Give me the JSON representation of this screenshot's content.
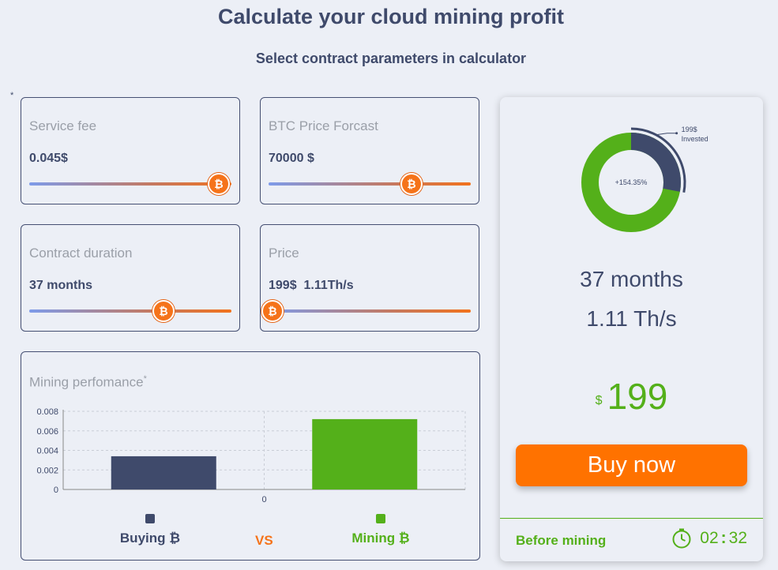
{
  "header": {
    "title": "Calculate your cloud mining profit",
    "subtitle": "Select contract parameters in calculator",
    "asterisk": "*"
  },
  "params": {
    "service_fee": {
      "label": "Service fee",
      "value": "0.045$",
      "slider_fraction": 0.93
    },
    "btc_price": {
      "label": "BTC Price Forcast",
      "value": "70000 $",
      "slider_fraction": 0.7
    },
    "duration": {
      "label": "Contract duration",
      "value": "37 months",
      "slider_fraction": 0.66
    },
    "price": {
      "label": "Price",
      "value": "199$  1.11Th/s",
      "slider_fraction": 0.02
    }
  },
  "performance": {
    "label": "Mining perfomance",
    "asterisk": "*",
    "legend": {
      "buying": "Buying ₿",
      "vs": "VS",
      "mining": "Mining ₿"
    }
  },
  "chart_data": {
    "type": "bar",
    "categories": [
      "Buying",
      "Mining"
    ],
    "values": [
      0.0034,
      0.0072
    ],
    "ylim": [
      0,
      0.008
    ],
    "yticks": [
      "0.008",
      "0.006",
      "0.004",
      "0.002",
      "0"
    ],
    "xticks": [
      "0"
    ],
    "colors": [
      "#3f4a6b",
      "#54b01a"
    ],
    "grid": true,
    "title": "",
    "xlabel": "",
    "ylabel": ""
  },
  "summary": {
    "donut": {
      "center_label": "+154.35%",
      "invested_amount": "199$",
      "invested_label": "Invested",
      "invested_fraction": 0.28,
      "colors": {
        "invested": "#3f4a6b",
        "profit": "#54b01a"
      }
    },
    "months": "37 months",
    "hashrate": "1.11 Th/s",
    "currency": "$",
    "price": "199",
    "buy_label": "Buy now",
    "before_label": "Before mining",
    "timer": {
      "minutes": "02",
      "seconds": "32"
    }
  },
  "colors": {
    "accent": "#ff7200",
    "green": "#54b01a",
    "navy": "#3f4a6b",
    "background": "#eceff6"
  },
  "icons": {
    "slider_thumb": "bitcoin-icon",
    "timer": "clock-icon"
  }
}
